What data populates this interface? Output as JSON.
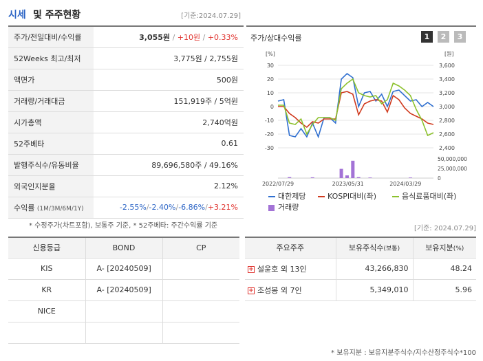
{
  "header": {
    "title_main": "시세",
    "title_rest": "및 주주현황",
    "std_date": "[기준:2024.07.29]"
  },
  "stock": {
    "rows": [
      {
        "label": "주가/전일대비/수익률",
        "price": "3,055원",
        "change": "+10원",
        "rate": "+0.33%"
      },
      {
        "label": "52Weeks 최고/최저",
        "value": "3,775원 / 2,755원"
      },
      {
        "label": "액면가",
        "value": "500원"
      },
      {
        "label": "거래량/거래대금",
        "value": "151,919주 / 5억원"
      },
      {
        "label": "시가총액",
        "value": "2,740억원"
      },
      {
        "label": "52주베타",
        "value": "0.61"
      },
      {
        "label": "발행주식수/유동비율",
        "value": "89,696,580주 / 49.16%"
      },
      {
        "label": "외국인지분율",
        "value": "2.12%"
      },
      {
        "label": "수익률",
        "label_sub": "(1M/3M/6M/1Y)",
        "r1": "-2.55%",
        "r2": "-2.40%",
        "r3": "-6.86%",
        "r4": "+3.21%",
        "sep": "/"
      }
    ],
    "note": "* 수정주가(차트포함), 보통주 기준, * 52주베타: 주간수익률 기준"
  },
  "chart_panel": {
    "title": "주가/상대수익률",
    "pages": [
      "1",
      "2",
      "3"
    ],
    "legend": {
      "company": "대한제당",
      "kospi": "KOSPI대비(좌)",
      "sector": "음식료품대비(좌)",
      "volume": "거래량"
    },
    "colors": {
      "company": "#2f6fd0",
      "kospi": "#d03a1e",
      "sector": "#8cc12d",
      "volume": "#a373d6"
    }
  },
  "chart_data": {
    "type": "line",
    "left_unit": "[%]",
    "right_unit": "[원]",
    "left_ticks": [
      "30",
      "20",
      "10",
      "0",
      "-10",
      "-20",
      "-30"
    ],
    "right_ticks": [
      "3,600",
      "3,400",
      "3,200",
      "3,000",
      "2,800",
      "2,600",
      "2,400"
    ],
    "volume_ticks": [
      "50,000,000",
      "25,000,000",
      "0"
    ],
    "x_labels": [
      "2022/07/29",
      "2023/05/31",
      "2024/03/29"
    ],
    "ylim_left": [
      -30,
      30
    ],
    "ylim_right": [
      2400,
      3600
    ],
    "ylim_volume": [
      0,
      50000000
    ],
    "series": [
      {
        "name": "대한제당",
        "axis": "right",
        "values": [
          3080,
          3100,
          2580,
          2560,
          2680,
          2560,
          2760,
          2560,
          2840,
          2840,
          2760,
          3400,
          3480,
          3420,
          3000,
          3200,
          3220,
          3080,
          3180,
          3000,
          3220,
          3240,
          3160,
          3080,
          3100,
          3000,
          3060,
          3000
        ]
      },
      {
        "name": "KOSPI대비(좌)",
        "axis": "left",
        "values": [
          0,
          0,
          -5,
          -8,
          -12,
          -15,
          -11,
          -12,
          -9,
          -9,
          -9,
          10,
          11,
          9,
          -6,
          2,
          4,
          5,
          4,
          -4,
          8,
          5,
          -1,
          -5,
          -7,
          -9,
          -12,
          -13
        ]
      },
      {
        "name": "음식료품대비(좌)",
        "axis": "left",
        "values": [
          1,
          1,
          -12,
          -13,
          -9,
          -20,
          -13,
          -8,
          -8,
          -8,
          -10,
          13,
          17,
          20,
          10,
          8,
          7,
          8,
          2,
          5,
          17,
          15,
          12,
          8,
          -2,
          -10,
          -21,
          -19
        ]
      }
    ],
    "volume": {
      "name": "거래량",
      "x_index": [
        2,
        6,
        11,
        12,
        13,
        14,
        16,
        23
      ],
      "values": [
        2500000,
        2000000,
        24000000,
        7000000,
        45000000,
        2500000,
        1500000,
        1500000
      ]
    }
  },
  "std_date2": "[기준: 2024.07.29]",
  "credit": {
    "headers": [
      "신용등급",
      "BOND",
      "CP"
    ],
    "rows": [
      {
        "agency": "KIS",
        "bond": "A-  [20240509]",
        "cp": ""
      },
      {
        "agency": "KR",
        "bond": "A-  [20240509]",
        "cp": ""
      },
      {
        "agency": "NICE",
        "bond": "",
        "cp": ""
      },
      {
        "agency": "",
        "bond": "",
        "cp": ""
      }
    ]
  },
  "holders": {
    "headers": {
      "name": "주요주주",
      "shares": "보유주식수",
      "shares_unit": "(보통)",
      "ratio": "보유지분",
      "ratio_unit": "(%)"
    },
    "rows": [
      {
        "name": "설윤호 외 13인",
        "shares": "43,266,830",
        "ratio": "48.24"
      },
      {
        "name": "조성봉 외 7인",
        "shares": "5,349,010",
        "ratio": "5.96"
      }
    ],
    "note": "* 보유지분 : 보유지분주식수/지수산정주식수*100"
  }
}
